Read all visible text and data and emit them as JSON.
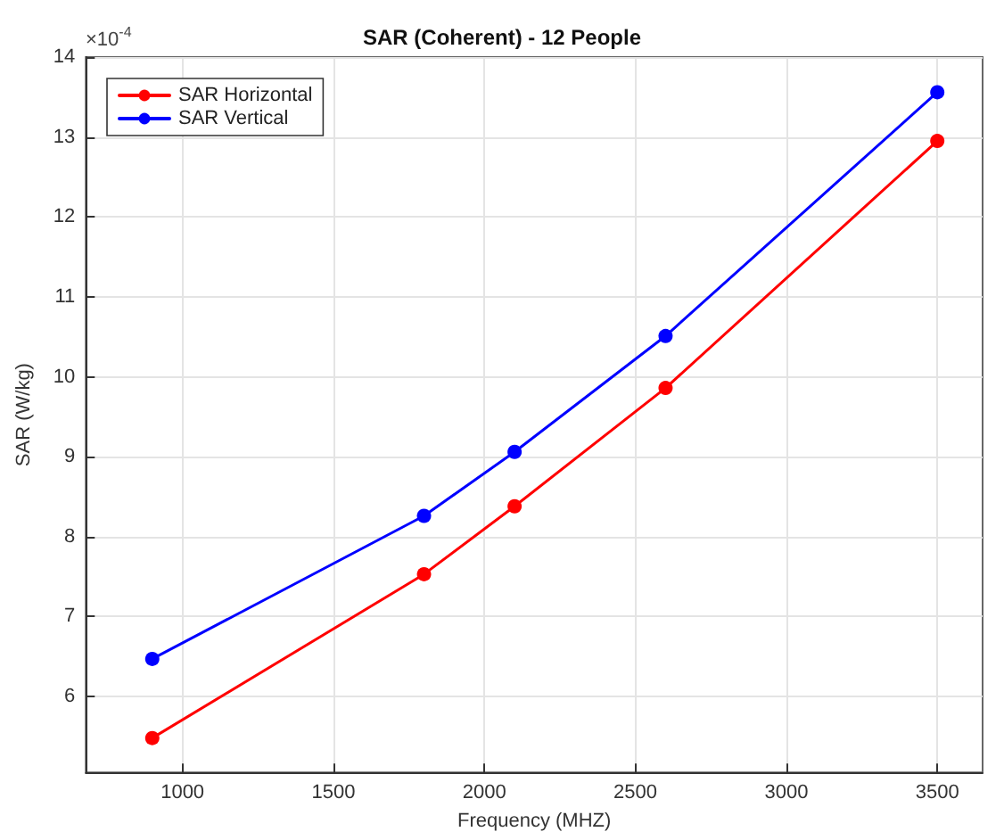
{
  "chart_data": {
    "type": "line",
    "title": "SAR (Coherent) - 12 People",
    "xlabel": "Frequency (MHZ)",
    "ylabel": "SAR (W/kg)",
    "annotations": [
      "×10$^{-4}$"
    ],
    "x": [
      900,
      1800,
      2100,
      2600,
      3500
    ],
    "series": [
      {
        "name": "SAR Horizontal",
        "color": "#ff0000",
        "values": [
          5.48,
          7.53,
          8.38,
          9.86,
          12.95
        ]
      },
      {
        "name": "SAR Vertical",
        "color": "#0000ff",
        "values": [
          6.47,
          8.26,
          9.06,
          10.51,
          13.56
        ]
      }
    ],
    "xlim": [
      680,
      3650
    ],
    "xticks": [
      1000,
      1500,
      2000,
      2500,
      3000,
      3500
    ],
    "ylim": [
      5.05,
      14
    ],
    "yticks": [
      6,
      7,
      8,
      9,
      10,
      11,
      12,
      13,
      14
    ],
    "grid": true,
    "legend": "top left",
    "marker": "circle",
    "line_style": "solid"
  }
}
